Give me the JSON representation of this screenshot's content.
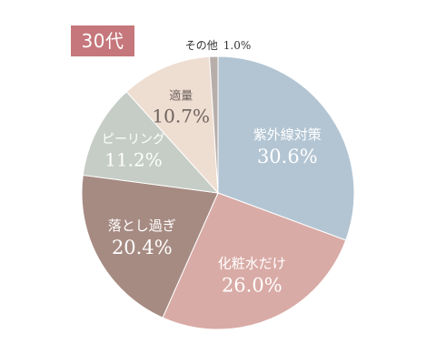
{
  "badge": {
    "label": "30代",
    "color": "#c5777b"
  },
  "chart_data": {
    "type": "pie",
    "start_angle_deg": 0,
    "direction": "clockwise",
    "slices": [
      {
        "label": "紫外線対策",
        "value": 30.6,
        "display": "30.6%",
        "color": "#b3c5d3",
        "text_color": "#ffffff"
      },
      {
        "label": "化粧水だけ",
        "value": 26.0,
        "display": "26.0%",
        "color": "#d9aba6",
        "text_color": "#ffffff"
      },
      {
        "label": "落とし過ぎ",
        "value": 20.4,
        "display": "20.4%",
        "color": "#a68b82",
        "text_color": "#ffffff"
      },
      {
        "label": "ピーリング",
        "value": 11.2,
        "display": "11.2%",
        "color": "#c5cdc6",
        "text_color": "#ffffff"
      },
      {
        "label": "適量",
        "value": 10.7,
        "display": "10.7%",
        "color": "#eeddd1",
        "text_color": "#6e6460"
      },
      {
        "label": "その他",
        "value": 1.0,
        "display": "1.0%",
        "color": "#b7aeaa",
        "text_color": "#333333",
        "outside": true
      }
    ]
  }
}
